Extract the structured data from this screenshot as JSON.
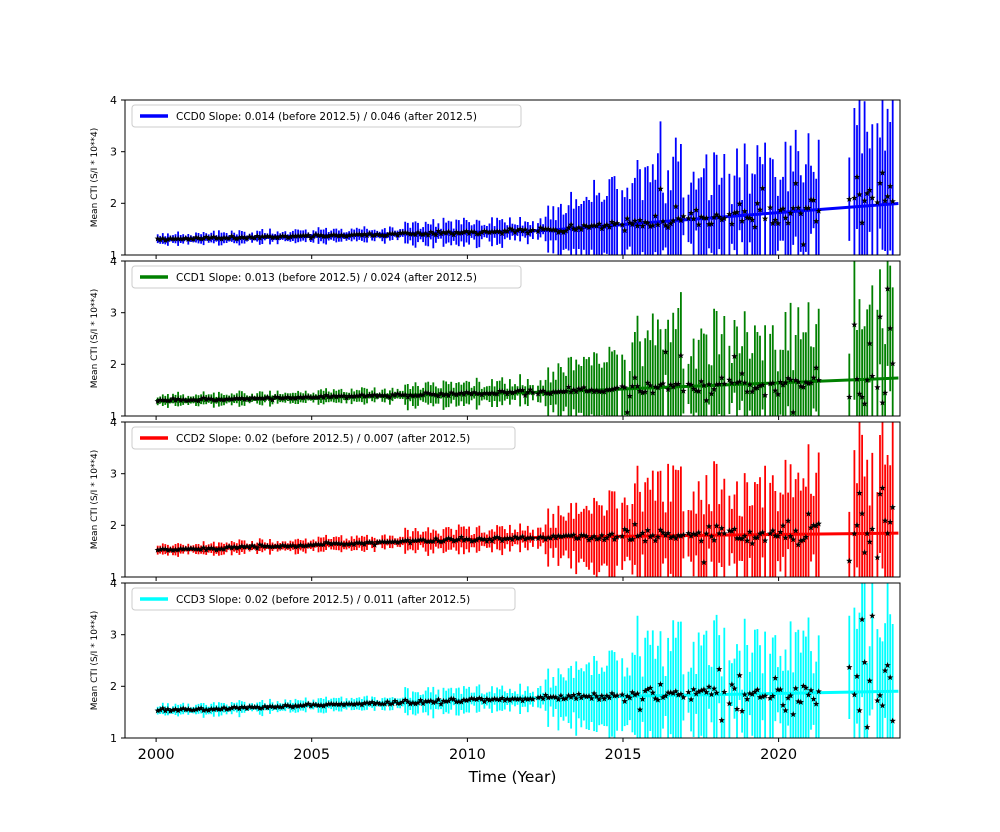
{
  "figure": {
    "background": "#ffffff",
    "xlabel": "Time (Year)",
    "ylabel": "Mean CTI (S/I * 10**4)",
    "xlim": [
      1999.0,
      2023.9
    ],
    "ylim": [
      1,
      4
    ],
    "x_ticks": [
      2000,
      2005,
      2010,
      2015,
      2020
    ],
    "x_tick_labels": [
      "2000",
      "2005",
      "2010",
      "2015",
      "2020"
    ],
    "y_ticks": [
      1,
      2,
      3,
      4
    ],
    "y_tick_labels": [
      "1",
      "2",
      "3",
      "4"
    ],
    "grid": false,
    "legend_position": "upper-left",
    "axis_color": "#000000",
    "legend_border_color": "#cccccc",
    "legend_background": "#ffffff"
  },
  "chart_data": [
    {
      "type": "scatter",
      "series_name": "CCD0",
      "color": "#0000ff",
      "marker": {
        "shape": "star",
        "color": "#000000"
      },
      "legend_label": "CCD0 Slope: 0.014 (before 2012.5) / 0.046 (after 2012.5)",
      "trend": {
        "break_year": 2012.5,
        "slope_before": 0.014,
        "slope_after": 0.046,
        "value_at_2000": 1.3,
        "value_at_2012_5": 1.475,
        "value_at_2023_8": 1.995
      },
      "data_time_range": [
        2000.05,
        2023.68
      ],
      "data_gap": [
        2021.35,
        2022.25
      ],
      "seed": 11
    },
    {
      "type": "scatter",
      "series_name": "CCD1",
      "color": "#008000",
      "marker": {
        "shape": "star",
        "color": "#000000"
      },
      "legend_label": "CCD1 Slope: 0.013 (before 2012.5) / 0.024 (after 2012.5)",
      "trend": {
        "break_year": 2012.5,
        "slope_before": 0.013,
        "slope_after": 0.024,
        "value_at_2000": 1.3,
        "value_at_2012_5": 1.463,
        "value_at_2023_8": 1.734
      },
      "data_time_range": [
        2000.05,
        2023.68
      ],
      "data_gap": [
        2021.35,
        2022.25
      ],
      "seed": 23
    },
    {
      "type": "scatter",
      "series_name": "CCD2",
      "color": "#ff0000",
      "marker": {
        "shape": "star",
        "color": "#000000"
      },
      "legend_label": "CCD2 Slope: 0.02 (before 2012.5) / 0.007 (after 2012.5)",
      "trend": {
        "break_year": 2012.5,
        "slope_before": 0.02,
        "slope_after": 0.007,
        "value_at_2000": 1.52,
        "value_at_2012_5": 1.77,
        "value_at_2023_8": 1.849
      },
      "data_time_range": [
        2000.05,
        2023.68
      ],
      "data_gap": [
        2021.35,
        2022.25
      ],
      "seed": 37
    },
    {
      "type": "scatter",
      "series_name": "CCD3",
      "color": "#00ffff",
      "marker": {
        "shape": "star",
        "color": "#000000"
      },
      "legend_label": "CCD3 Slope: 0.02 (before 2012.5) / 0.011 (after 2012.5)",
      "trend": {
        "break_year": 2012.5,
        "slope_before": 0.02,
        "slope_after": 0.011,
        "value_at_2000": 1.53,
        "value_at_2012_5": 1.78,
        "value_at_2023_8": 1.904
      },
      "data_time_range": [
        2000.05,
        2023.68
      ],
      "data_gap": [
        2021.35,
        2022.25
      ],
      "seed": 53
    }
  ],
  "simulation": {
    "cadence_years": 0.082,
    "shared_seed": 997,
    "skip_probability": 0.03,
    "errorbar_profile": [
      {
        "until": 2001.0,
        "base": 0.05,
        "spread": 0.08,
        "spike_prob": 0.0,
        "spike_scale": 1
      },
      {
        "until": 2008.0,
        "base": 0.05,
        "spread": 0.1,
        "spike_prob": 0.02,
        "spike_scale": 4
      },
      {
        "until": 2012.5,
        "base": 0.1,
        "spread": 0.18,
        "spike_prob": 0.012,
        "spike_scale": 3
      },
      {
        "until": 2015.0,
        "base": 0.15,
        "spread": 0.35,
        "spike_prob": 0.0,
        "spike_scale": 1,
        "growth": 0.18
      },
      {
        "until": 2021.4,
        "base": 0.38,
        "spread": 1.05,
        "spike_prob": 0.0,
        "spike_scale": 1
      },
      {
        "until": 2024.0,
        "base": 0.65,
        "spread": 1.15,
        "spike_prob": 0.0,
        "spike_scale": 1
      }
    ],
    "scatter_profile": [
      {
        "until": 2008.0,
        "sigma": 0.03
      },
      {
        "until": 2012.5,
        "sigma": 0.045
      },
      {
        "until": 2015.0,
        "sigma": 0.07
      },
      {
        "until": 2017.0,
        "sigma": 0.12
      },
      {
        "until": 2019.0,
        "sigma": 0.18
      },
      {
        "until": 2021.4,
        "sigma": 0.28
      },
      {
        "until": 2024.0,
        "sigma": 0.5
      }
    ]
  }
}
